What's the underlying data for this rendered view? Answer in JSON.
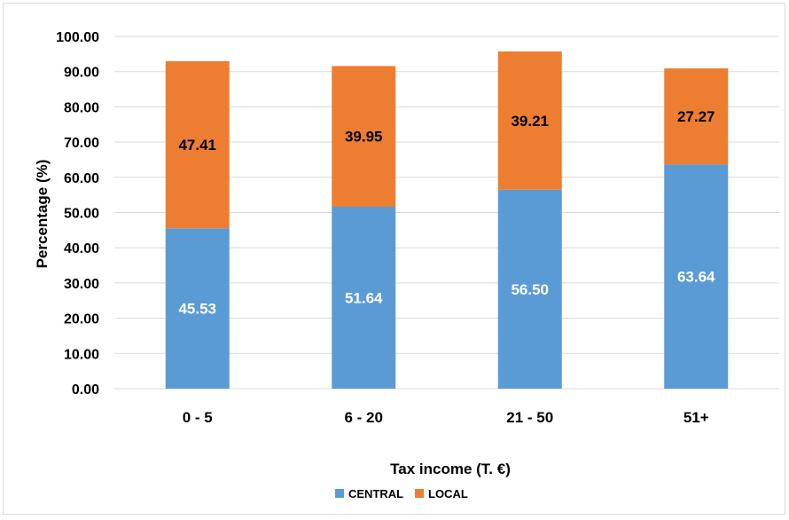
{
  "chart_data": {
    "type": "bar",
    "stacked": true,
    "categories": [
      "0 - 5",
      "6 - 20",
      "21 - 50",
      "51+"
    ],
    "series": [
      {
        "name": "CENTRAL",
        "color": "#5b9bd5",
        "label_color": "#ffffff",
        "values": [
          45.53,
          51.64,
          56.5,
          63.64
        ]
      },
      {
        "name": "LOCAL",
        "color": "#ed7d31",
        "label_color": "#000000",
        "values": [
          47.41,
          39.95,
          39.21,
          27.27
        ]
      }
    ],
    "xlabel": "Tax income (T. €)",
    "ylabel": "Percentage (%)",
    "ylim": [
      0,
      100
    ],
    "yticks": [
      "0.00",
      "10.00",
      "20.00",
      "30.00",
      "40.00",
      "50.00",
      "60.00",
      "70.00",
      "80.00",
      "90.00",
      "100.00"
    ],
    "grid": true,
    "legend": "bottom"
  }
}
